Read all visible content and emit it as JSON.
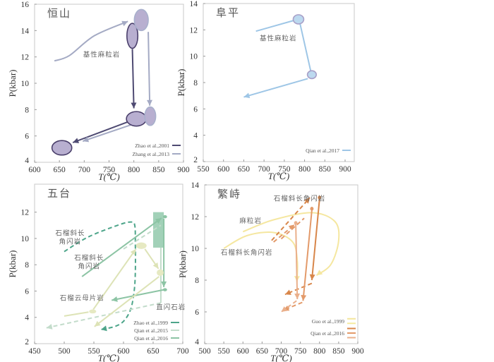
{
  "chart_data": [
    {
      "type": "line",
      "title": "恒山",
      "xlabel": "T(℃)",
      "ylabel": "P(kbar)",
      "xlim": [
        600,
        900
      ],
      "ylim": [
        4,
        16
      ],
      "xticks": [
        "600",
        "650",
        "700",
        "750",
        "800",
        "850",
        "900"
      ],
      "yticks": [
        "4",
        "6",
        "8",
        "10",
        "12",
        "14",
        "16"
      ],
      "legend": [
        {
          "label": "Zhao et al.,2001",
          "color": "#4e4a72",
          "dash": false
        },
        {
          "label": "Zhang et al.,2013",
          "color": "#a4aac4",
          "dash": false
        }
      ],
      "ellipses": [
        {
          "series": "Zhao et al.,2001",
          "c": [
            797,
            13.6
          ],
          "r": [
            11,
            0.95
          ],
          "fill": "#b8afd0",
          "stroke": "#4a3f6b"
        },
        {
          "series": "Zhao et al.,2001",
          "c": [
            805,
            7.3
          ],
          "r": [
            20,
            0.55
          ],
          "fill": "#b8afd0",
          "stroke": "#4a3f6b"
        },
        {
          "series": "Zhao et al.,2001",
          "c": [
            655,
            5.1
          ],
          "r": [
            20,
            0.55
          ],
          "fill": "#b8afd0",
          "stroke": "#4a3f6b"
        },
        {
          "series": "Zhang et al.,2013",
          "c": [
            815,
            14.8
          ],
          "r": [
            14,
            0.8
          ],
          "fill": "#b8afd0",
          "stroke": "#a8b0cc"
        },
        {
          "series": "Zhang et al.,2013",
          "c": [
            833,
            7.5
          ],
          "r": [
            11,
            0.7
          ],
          "fill": "#b8afd0",
          "stroke": "#a8b0cc"
        }
      ],
      "paths": [
        {
          "series": "Zhao et al.,2001",
          "pts": [
            [
              797,
              12.6
            ],
            [
              800,
              8.1
            ]
          ],
          "color": "#4e4a72",
          "arrow": true
        },
        {
          "series": "Zhao et al.,2001",
          "pts": [
            [
              790,
              7.1
            ],
            [
              677,
              5.5
            ]
          ],
          "color": "#4e4a72",
          "arrow": true
        },
        {
          "series": "Zhang et al.,2013",
          "pts": [
            [
              640,
              11.7
            ],
            [
              670,
              12.1
            ],
            [
              720,
              13.6
            ],
            [
              788,
              14.7
            ]
          ],
          "color": "#a4aac4",
          "arrow": true
        },
        {
          "series": "Zhang et al.,2013",
          "pts": [
            [
              829,
              13.9
            ],
            [
              832,
              8.3
            ]
          ],
          "color": "#a4aac4",
          "arrow": true
        },
        {
          "series": "Zhang et al.,2013",
          "pts": [
            [
              822,
              7.2
            ],
            [
              697,
              5.6
            ]
          ],
          "color": "#a4aac4",
          "arrow": true
        }
      ],
      "labels": [
        {
          "at": [
            735,
            12.0
          ],
          "lines": [
            "基性麻粒岩"
          ]
        }
      ]
    },
    {
      "type": "line",
      "title": "阜平",
      "xlabel": "T(℃)",
      "ylabel": "P(kbar)",
      "xlim": [
        550,
        900
      ],
      "ylim": [
        2,
        14
      ],
      "xticks": [
        "550",
        "600",
        "650",
        "700",
        "750",
        "800",
        "850",
        "900"
      ],
      "yticks": [
        "2",
        "4",
        "6",
        "8",
        "10",
        "12",
        "14"
      ],
      "legend": [
        {
          "label": "Qian et al.,2017",
          "color": "#9ec6e6",
          "dash": false
        }
      ],
      "ellipses": [
        {
          "series": "Qian et al.,2017",
          "c": [
            785,
            12.8
          ],
          "r": [
            13,
            0.35
          ],
          "fill": "#bcd9ef",
          "stroke": "#a8a0c8"
        },
        {
          "series": "Qian et al.,2017",
          "c": [
            818,
            8.6
          ],
          "r": [
            11,
            0.3
          ],
          "fill": "#bcd9ef",
          "stroke": "#a8a0c8"
        }
      ],
      "paths": [
        {
          "series": "Qian et al.,2017",
          "pts": [
            [
              680,
              11.9
            ],
            [
              772,
              12.7
            ]
          ],
          "color": "#9ec6e6",
          "arrow": false
        },
        {
          "series": "Qian et al.,2017",
          "pts": [
            [
              789,
              12.45
            ],
            [
              815,
              8.9
            ]
          ],
          "color": "#9ec6e6",
          "arrow": false
        },
        {
          "series": "Qian et al.,2017",
          "pts": [
            [
              808,
              8.3
            ],
            [
              650,
              6.9
            ]
          ],
          "color": "#9ec6e6",
          "arrow": true
        }
      ],
      "labels": [
        {
          "at": [
            735,
            11.2
          ],
          "lines": [
            "基性麻粒岩"
          ]
        }
      ]
    },
    {
      "type": "line",
      "title": "五台",
      "xlabel": "T(℃)",
      "ylabel": "P(kbar)",
      "xlim": [
        450,
        700
      ],
      "ylim": [
        2,
        13
      ],
      "xticks": [
        "450",
        "500",
        "550",
        "600",
        "650",
        "700"
      ],
      "yticks": [
        "2",
        "4",
        "6",
        "8",
        "10",
        "12"
      ],
      "legend": [
        {
          "label": "Zhao et al.,1999",
          "color": "#4da58a",
          "dash": false
        },
        {
          "label": "Qian et al.,2015",
          "color": "#c3dccb",
          "dash": false
        },
        {
          "label": "Qian et al.,2016",
          "color": "#8cc4a4",
          "dash": false
        }
      ],
      "rects": [
        {
          "series": "Qian et al.,2016",
          "t": [
            650,
            668
          ],
          "p": [
            9.3,
            12
          ],
          "fill": "#a2d1b8"
        }
      ],
      "ellipses": [
        {
          "series": "garnet mica schist",
          "c": [
            548,
            4.45
          ],
          "r": [
            6,
            0.15
          ],
          "fill": "#e6e9c2",
          "stroke": "none"
        },
        {
          "series": "garnet mica schist",
          "c": [
            630,
            9.45
          ],
          "r": [
            9,
            0.25
          ],
          "fill": "#e6e9c2",
          "stroke": "none"
        },
        {
          "series": "garnet mica schist",
          "c": [
            662,
            7.4
          ],
          "r": [
            6,
            0.25
          ],
          "fill": "#e6e9c2",
          "stroke": "none"
        },
        {
          "series": "Qian et al.,2016",
          "c": [
            670,
            11.65
          ],
          "r": [
            3.5,
            0.12
          ],
          "fill": "#8cc4a4",
          "stroke": "none"
        },
        {
          "series": "Qian et al.,2016",
          "c": [
            670,
            6.1
          ],
          "r": [
            3.5,
            0.12
          ],
          "fill": "#8cc4a4",
          "stroke": "none"
        }
      ],
      "paths": [
        {
          "series": "Zhao et al.,1999",
          "pts": [
            [
              500,
              9.0
            ],
            [
              540,
              10.1
            ],
            [
              590,
              11.0
            ],
            [
              612,
              11.25
            ],
            [
              619,
              11.0
            ],
            [
              620,
              9.5
            ],
            [
              620,
              7.5
            ],
            [
              618,
              6.0
            ],
            [
              612,
              4.6
            ],
            [
              600,
              3.7
            ],
            [
              585,
              3.3
            ],
            [
              562,
              3.07
            ]
          ],
          "color": "#4da58a",
          "dash": true,
          "arrow": true
        },
        {
          "series": "Qian et al.,2015",
          "pts": [
            [
              600,
              9.2
            ],
            [
              663,
              11.0
            ]
          ],
          "color": "#c3dccb",
          "dash": true,
          "arrow": false
        },
        {
          "series": "Qian et al.,2015",
          "pts": [
            [
              663,
              9.3
            ],
            [
              663,
              5.1
            ]
          ],
          "color": "#c3dccb",
          "dash": false,
          "arrow": false
        },
        {
          "series": "Qian et al.,2015",
          "pts": [
            [
              663,
              5.1
            ],
            [
              470,
              3.2
            ]
          ],
          "color": "#c3dccb",
          "dash": true,
          "arrow": true
        },
        {
          "series": "Qian et al.,2016",
          "pts": [
            [
              530,
              7.1
            ],
            [
              664,
              11.55
            ]
          ],
          "color": "#8cc4a4",
          "arrow": true
        },
        {
          "series": "Qian et al.,2016",
          "pts": [
            [
              668,
              11.5
            ],
            [
              668,
              6.3
            ]
          ],
          "color": "#8cc4a4",
          "arrow": true
        },
        {
          "series": "Qian et al.,2016",
          "pts": [
            [
              668,
              6.1
            ],
            [
              580,
              5.3
            ]
          ],
          "color": "#8cc4a4",
          "arrow": true
        },
        {
          "series": "garnet mica schist",
          "pts": [
            [
              500,
              4.1
            ],
            [
              541,
              4.4
            ]
          ],
          "color": "#dde3b6",
          "arrow": false
        },
        {
          "series": "garnet mica schist",
          "pts": [
            [
              549,
              4.6
            ],
            [
              621,
              9.2
            ]
          ],
          "color": "#dde3b6",
          "arrow": true
        },
        {
          "series": "garnet mica schist",
          "pts": [
            [
              636,
              9.2
            ],
            [
              659,
              7.7
            ]
          ],
          "color": "#dde3b6",
          "arrow": true
        },
        {
          "series": "garnet mica schist",
          "pts": [
            [
              660,
              7.1
            ],
            [
              551,
              3.3
            ]
          ],
          "color": "#dde3b6",
          "arrow": true
        }
      ],
      "labels": [
        {
          "at": [
            510,
            10.25
          ],
          "lines": [
            "石榴斜长",
            "角闪岩"
          ]
        },
        {
          "at": [
            542,
            8.35
          ],
          "lines": [
            "石榴斜长",
            "角闪岩"
          ]
        },
        {
          "at": [
            530,
            5.3
          ],
          "lines": [
            "石榴云母片岩"
          ]
        },
        {
          "at": [
            680,
            4.6
          ],
          "lines": [
            "直闪石岩"
          ]
        }
      ]
    },
    {
      "type": "line",
      "title": "繁峙",
      "xlabel": "T(℃)",
      "ylabel": "P(kbar)",
      "xlim": [
        500,
        900
      ],
      "ylim": [
        4,
        14
      ],
      "xticks": [
        "500",
        "550",
        "600",
        "650",
        "700",
        "750",
        "800",
        "850",
        "900"
      ],
      "yticks": [
        "4",
        "6",
        "8",
        "10",
        "12",
        "14"
      ],
      "legend": [
        {
          "label": "Guo et al.,1999",
          "color": "#f3e59a",
          "dash": false
        },
        {
          "label": "Qian et al.,2016",
          "color": "#dd8f55",
          "dash": false
        }
      ],
      "ellipses": [
        {
          "series": "Qian et al.,2016",
          "c": [
            800,
            13.2
          ],
          "r": [
            4.5,
            0.12
          ],
          "fill": "#d8864a",
          "stroke": "none"
        },
        {
          "series": "Qian et al.,2016",
          "c": [
            780,
            12.5
          ],
          "r": [
            4.5,
            0.12
          ],
          "fill": "#e39a6a",
          "stroke": "none"
        },
        {
          "series": "Qian et al.,2016",
          "c": [
            738,
            11.6
          ],
          "r": [
            4.5,
            0.12
          ],
          "fill": "#eab08c",
          "stroke": "none"
        }
      ],
      "paths": [
        {
          "series": "Guo et al.,1999",
          "pts": [
            [
              600,
              11.05
            ],
            [
              680,
              11.8
            ],
            [
              780,
              12.25
            ],
            [
              840,
              11.7
            ],
            [
              850,
              10.5
            ],
            [
              830,
              9.0
            ],
            [
              792,
              8.3
            ]
          ],
          "color": "#f5e7a0",
          "arrow": true
        },
        {
          "series": "Guo et al.,1999",
          "pts": [
            [
              550,
              10.0
            ],
            [
              610,
              10.8
            ],
            [
              680,
              11.0
            ],
            [
              730,
              10.4
            ],
            [
              742,
              9.2
            ],
            [
              741,
              7.9
            ]
          ],
          "color": "#f5e7a0",
          "arrow": true
        },
        {
          "series": "Qian et al.,2016",
          "pts": [
            [
              675,
              10.5
            ],
            [
              775,
              13.2
            ]
          ],
          "color": "#d8864a",
          "dash": true,
          "arrow": true
        },
        {
          "series": "Qian et al.,2016",
          "pts": [
            [
              680,
              10.4
            ],
            [
              735,
              11.5
            ]
          ],
          "color": "#e39a6a",
          "dash": true,
          "arrow": true
        },
        {
          "series": "Qian et al.,2016",
          "pts": [
            [
              700,
              10.6
            ],
            [
              760,
              11.9
            ]
          ],
          "color": "#e39a6a",
          "dash": true,
          "arrow": false
        },
        {
          "series": "Qian et al.,2016",
          "pts": [
            [
              800,
              13.1
            ],
            [
              780,
              8.0
            ]
          ],
          "color": "#d8864a",
          "arrow": true
        },
        {
          "series": "Qian et al.,2016",
          "pts": [
            [
              780,
              7.8
            ],
            [
              710,
              7.1
            ]
          ],
          "color": "#d8864a",
          "dash": true,
          "arrow": true
        },
        {
          "series": "Qian et al.,2016",
          "pts": [
            [
              780,
              12.4
            ],
            [
              757,
              6.7
            ]
          ],
          "color": "#e39a6a",
          "arrow": true
        },
        {
          "series": "Qian et al.,2016",
          "pts": [
            [
              755,
              6.6
            ],
            [
              705,
              6.1
            ]
          ],
          "color": "#e39a6a",
          "dash": true,
          "arrow": true
        },
        {
          "series": "Qian et al.,2016",
          "pts": [
            [
              738,
              11.5
            ],
            [
              742,
              6.8
            ]
          ],
          "color": "#eab08c",
          "arrow": true
        },
        {
          "series": "Qian et al.,2016",
          "pts": [
            [
              740,
              6.7
            ],
            [
              700,
              6.0
            ]
          ],
          "color": "#eab08c",
          "dash": true,
          "arrow": true
        }
      ],
      "labels": [
        {
          "at": [
            748,
            13.0
          ],
          "lines": [
            "石榴斜长角闪岩"
          ]
        },
        {
          "at": [
            620,
            11.6
          ],
          "lines": [
            "麻粒岩"
          ]
        },
        {
          "at": [
            610,
            9.6
          ],
          "lines": [
            "石榴斜长角闪岩"
          ]
        }
      ],
      "legend_swatches": {
        "Guo et al.,1999": [
          "#f3e59a",
          "#f5ea9f"
        ],
        "Qian et al.,2016": [
          "#d8864a",
          "#e39a6a",
          "#eab08c"
        ]
      }
    }
  ]
}
